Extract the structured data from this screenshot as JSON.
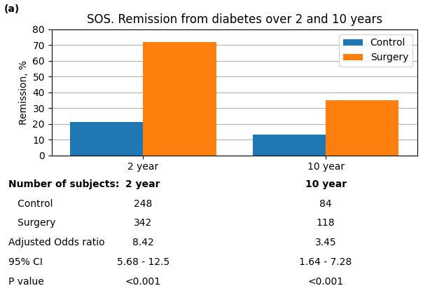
{
  "chart_data": {
    "type": "bar",
    "title": "SOS. Remission from diabetes over 2 and 10 years",
    "panel_label": "(a)",
    "ylabel": "Remission, %",
    "categories": [
      "2 year",
      "10 year"
    ],
    "series": [
      {
        "name": "Control",
        "values": [
          21,
          13
        ]
      },
      {
        "name": "Surgery",
        "values": [
          72,
          35
        ]
      }
    ],
    "ylim": [
      0,
      80
    ],
    "yticks": [
      0,
      10,
      20,
      30,
      40,
      50,
      60,
      70,
      80
    ],
    "grid": true,
    "legend": "upper right",
    "table": [
      [
        "Number of subjects:",
        "2 year",
        "10 year"
      ],
      [
        "   Control",
        "248",
        "84"
      ],
      [
        "   Surgery",
        "342",
        "118"
      ],
      [
        "Adjusted Odds ratio",
        "8.42",
        "3.45"
      ],
      [
        "95% CI",
        "5.68 - 12.5",
        "1.64 - 7.28"
      ],
      [
        "P value",
        "<0.001",
        "<0.001"
      ]
    ]
  }
}
